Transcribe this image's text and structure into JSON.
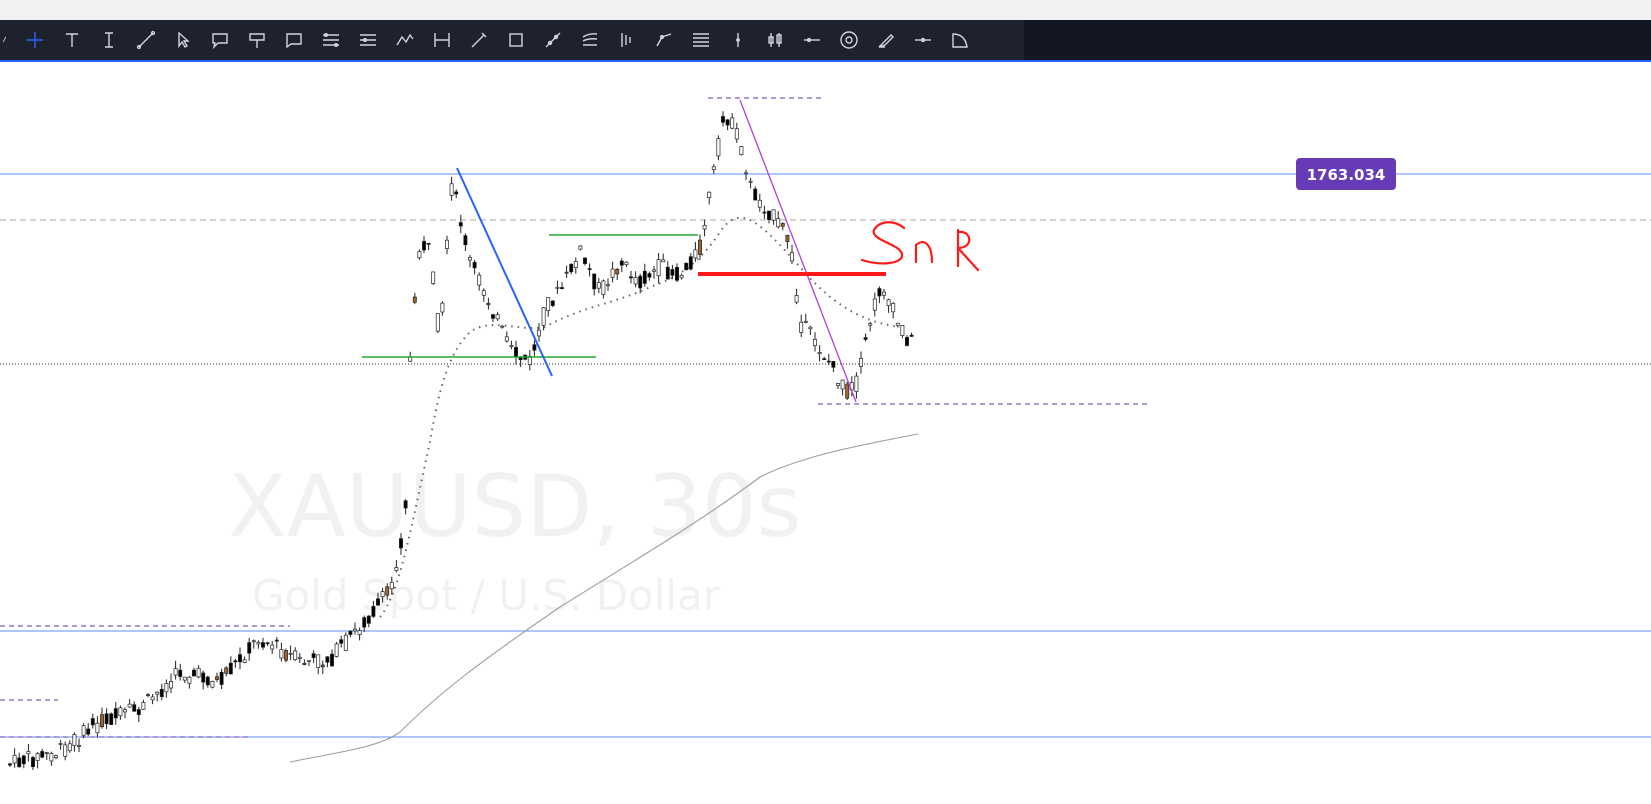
{
  "toolbar": {
    "tools": [
      {
        "name": "cut-icon"
      },
      {
        "name": "crosshair-icon",
        "active": true
      },
      {
        "name": "text-icon"
      },
      {
        "name": "text-cursor-icon"
      },
      {
        "name": "trend-line-icon"
      },
      {
        "name": "arrow-pointer-icon"
      },
      {
        "name": "callout-icon"
      },
      {
        "name": "signpost-icon"
      },
      {
        "name": "comment-icon"
      },
      {
        "name": "parallel-channel-icon"
      },
      {
        "name": "pitchfork-icon"
      },
      {
        "name": "zigzag-icon"
      },
      {
        "name": "date-range-icon"
      },
      {
        "name": "brush-icon"
      },
      {
        "name": "rectangle-icon"
      },
      {
        "name": "ruler-icon"
      },
      {
        "name": "fib-fan-icon"
      },
      {
        "name": "long-position-icon"
      },
      {
        "name": "path-icon"
      },
      {
        "name": "horizontal-lines-icon"
      },
      {
        "name": "vertical-line-icon"
      },
      {
        "name": "candle-pattern-icon"
      },
      {
        "name": "horizontal-ray-icon"
      },
      {
        "name": "target-icon"
      },
      {
        "name": "highlighter-icon"
      },
      {
        "name": "cross-line-icon"
      },
      {
        "name": "arc-icon"
      }
    ]
  },
  "chart_data": {
    "type": "candlestick",
    "watermark": {
      "symbol": "XAUUSD, 30s",
      "description": "Gold Spot / U.S. Dollar"
    },
    "price_label": "1763.034",
    "annotation_text": "Sn R",
    "colors": {
      "price_badge": "#673ab7",
      "horizontal_line": "#5b8ff9",
      "support_line": "#22a82a",
      "resistance_marker": "#ff1a1a",
      "trend_line_blue": "#2962ff",
      "trend_line_purple": "#b041d6",
      "moving_average": "#9e9e9e",
      "candle_up": "#ffffff",
      "candle_down": "#000000",
      "candle_highlight": "#a0642c"
    }
  }
}
